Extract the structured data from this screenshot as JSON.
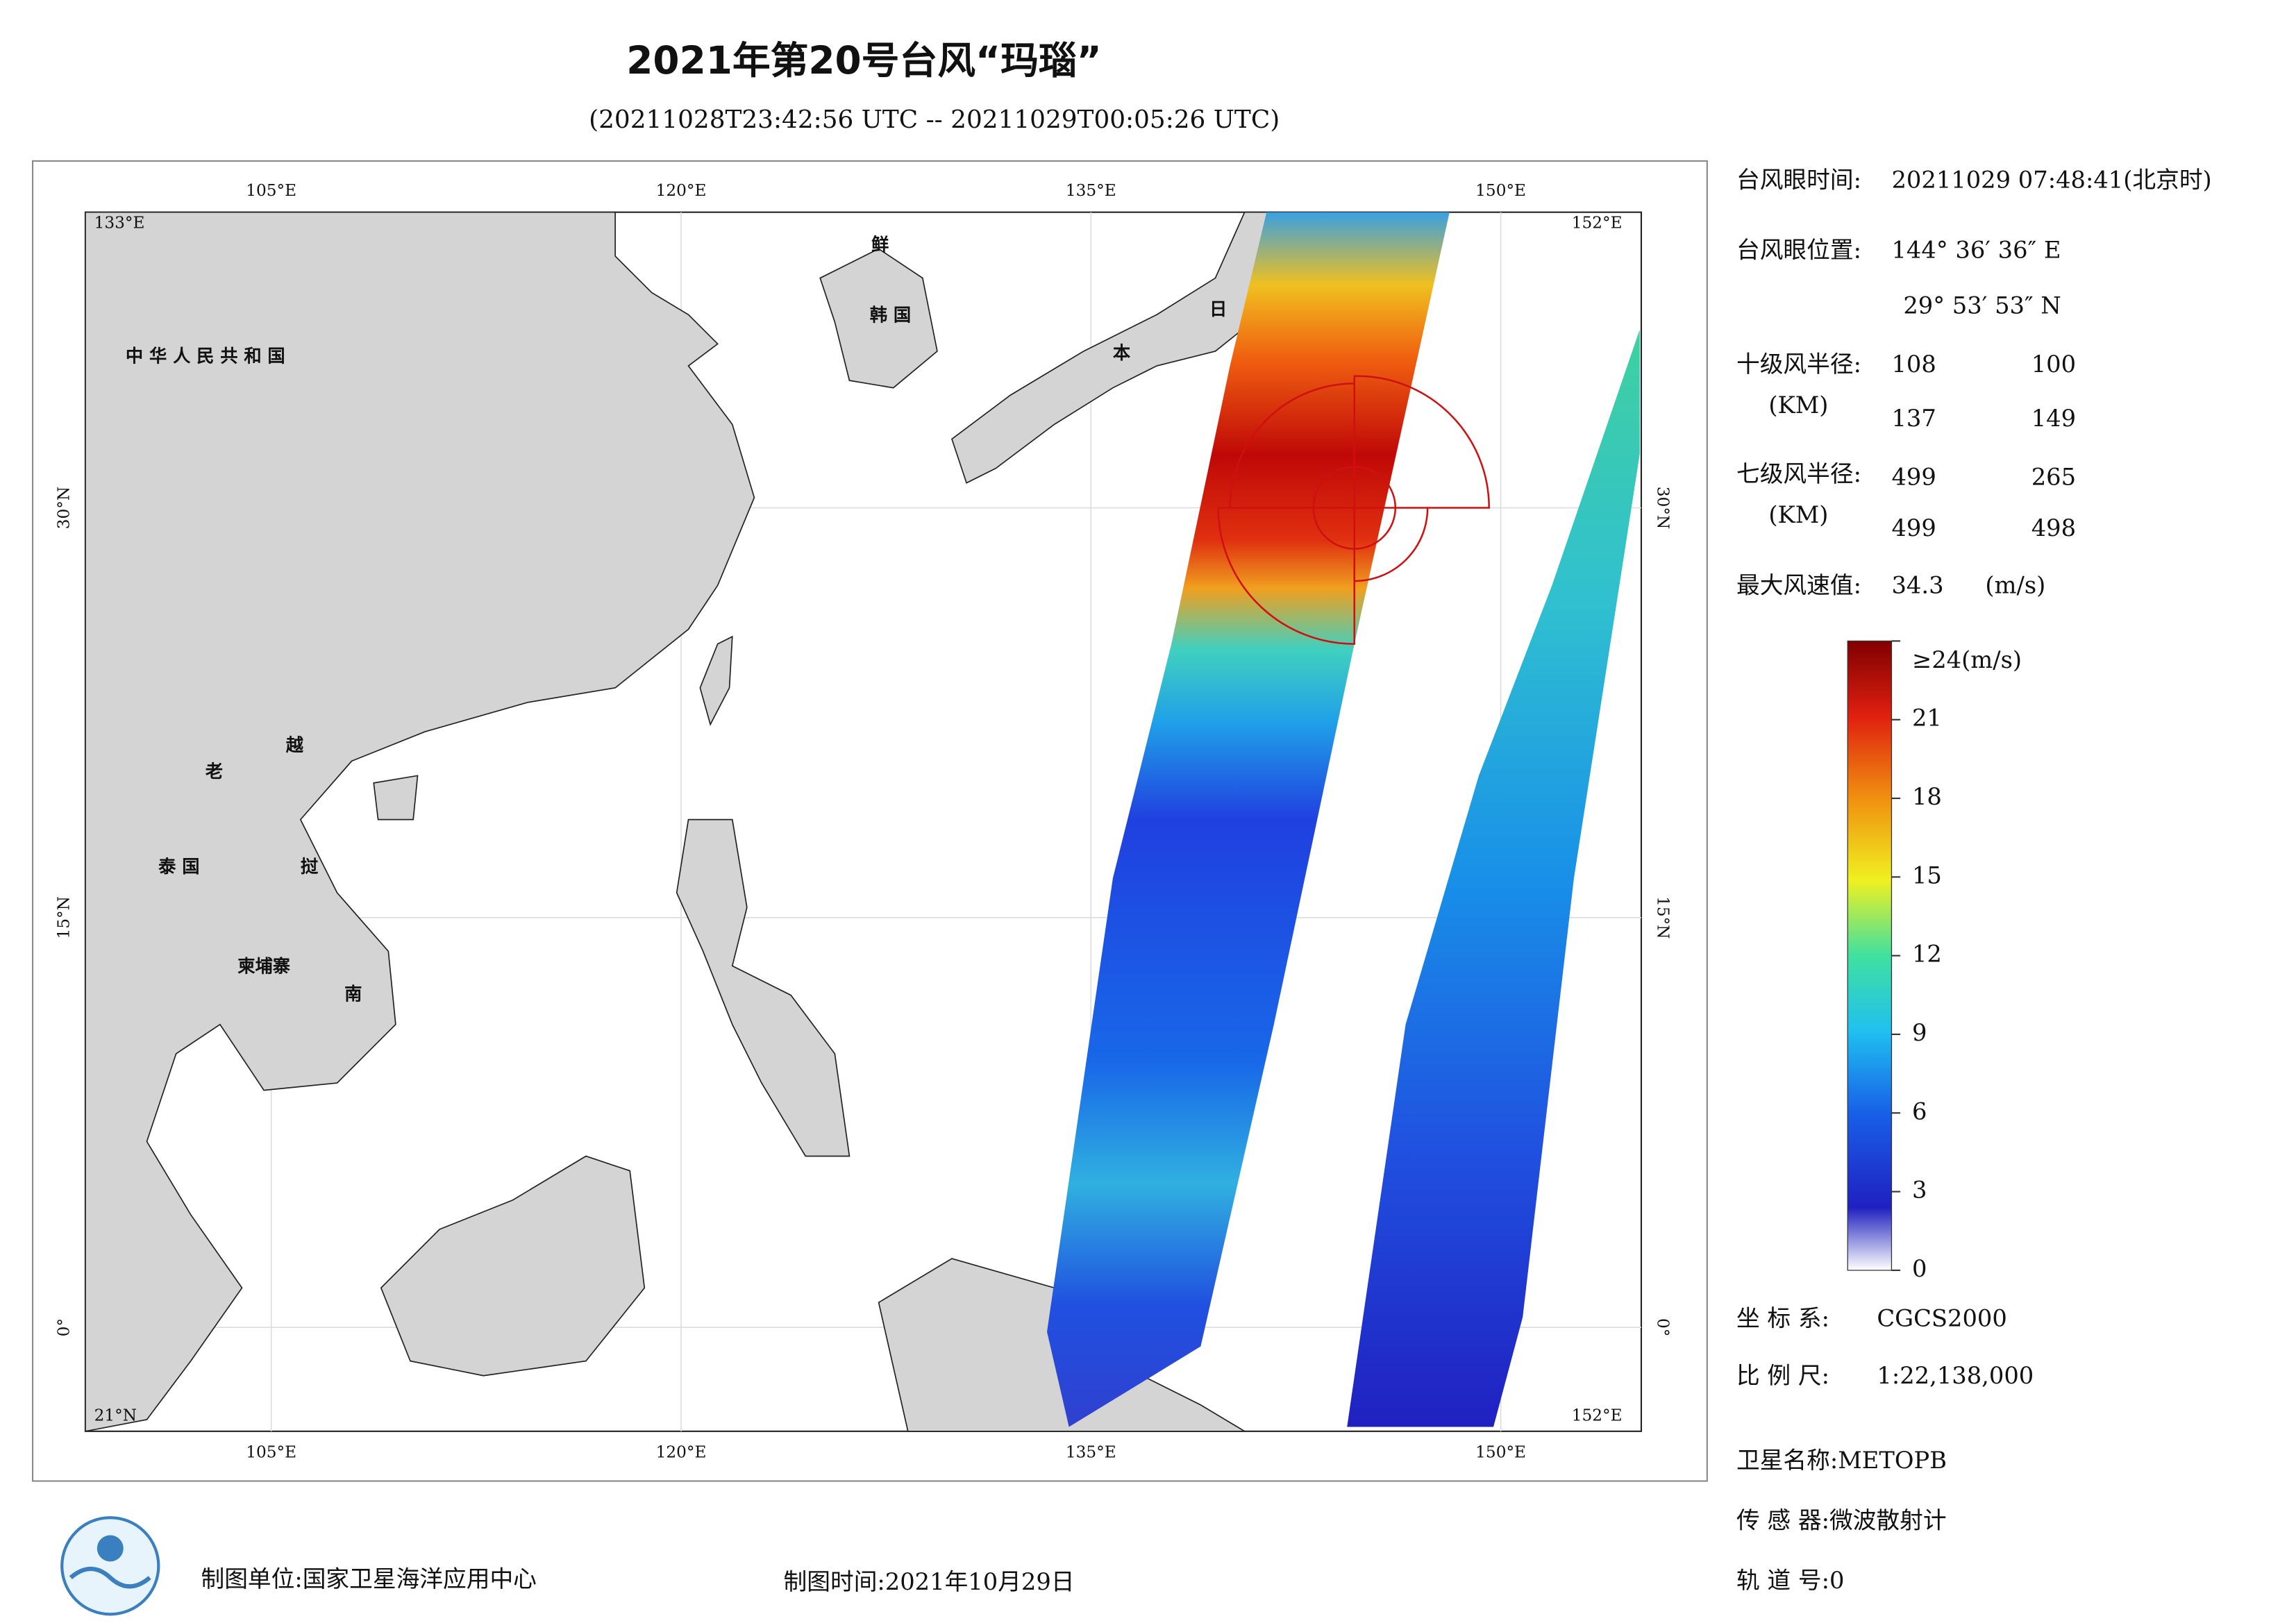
{
  "header": {
    "title": "2021年第20号台风“玛瑙”",
    "subtitle": "(20211028T23:42:56 UTC -- 20211029T00:05:26 UTC)"
  },
  "map": {
    "lon_labels": [
      "105°E",
      "120°E",
      "135°E",
      "150°E"
    ],
    "lat_labels": [
      "30°N",
      "15°N",
      "0°"
    ],
    "corner_labels": [
      "133°E",
      "152°E",
      "21°N",
      "152°E"
    ],
    "places": [
      "中 华 人 民 共 和 国",
      "韩 国",
      "鲜",
      "日",
      "本",
      "老",
      "越",
      "挝",
      "南",
      "泰 国",
      "柬埔寨"
    ]
  },
  "info": {
    "eye_time_label": "台风眼时间:",
    "eye_time": "20211029 07:48:41(北京时)",
    "eye_pos_label": "台风眼位置:",
    "eye_lon": "144° 36′ 36″ E",
    "eye_lat": "29° 53′ 53″ N",
    "r10_label": "十级风半径:",
    "km_label": "(KM)",
    "r10": [
      108,
      100,
      137,
      149
    ],
    "r7_label": "七级风半径:",
    "r7": [
      499,
      265,
      499,
      498
    ],
    "max_label": "最大风速值:",
    "max_value": 34.3,
    "max_unit": "(m/s)",
    "crs_label": "坐 标 系:",
    "crs": "CGCS2000",
    "scale_label": "比 例 尺:",
    "scale": "1:22,138,000",
    "sat_label": "卫星名称:METOPB",
    "sensor_label": "传 感 器:微波散射计",
    "orbit_label": "轨 道 号:0"
  },
  "colorbar": {
    "lim": [
      0,
      24
    ],
    "ticks": [
      0,
      3,
      6,
      9,
      12,
      15,
      18,
      21,
      {
        "value": 24,
        "label": "≥24(m/s)"
      }
    ]
  },
  "footer": {
    "unit": "制图单位:国家卫星海洋应用中心",
    "time": "制图时间:2021年10月29日"
  }
}
